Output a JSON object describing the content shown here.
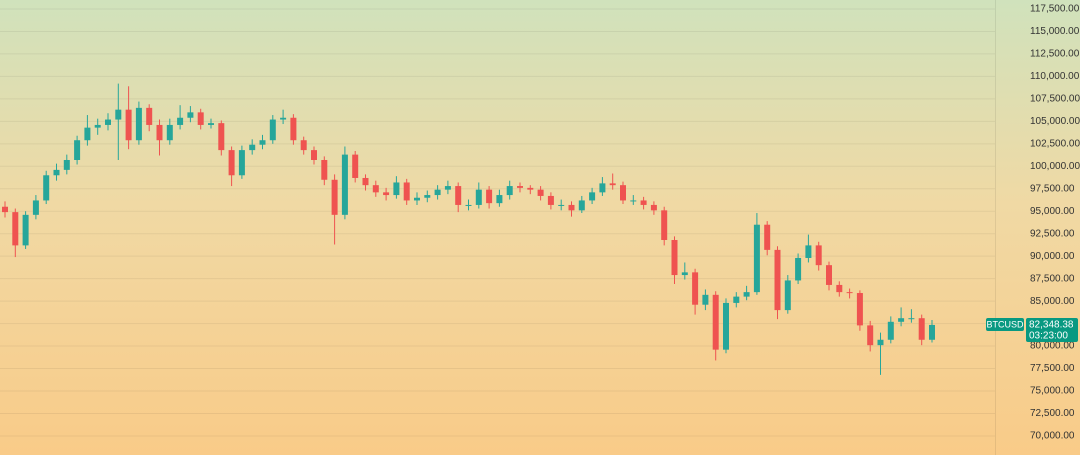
{
  "chart_data": {
    "type": "candlestick",
    "symbol": "BTCUSD",
    "last_price": {
      "value": 82348.38,
      "label": "82,348.38"
    },
    "countdown": "03:23:00",
    "up_color": "#26a69a",
    "down_color": "#ef5350",
    "badge_color": "#089981",
    "grid": true,
    "ylim": [
      67880,
      118500
    ],
    "yticks": [
      {
        "value": 70000,
        "label": "70,000.00"
      },
      {
        "value": 72500,
        "label": "72,500.00"
      },
      {
        "value": 75000,
        "label": "75,000.00"
      },
      {
        "value": 77500,
        "label": "77,500.00"
      },
      {
        "value": 80000,
        "label": "80,000.00"
      },
      {
        "value": 82500,
        "label": "82,500.00"
      },
      {
        "value": 85000,
        "label": "85,000.00"
      },
      {
        "value": 87500,
        "label": "87,500.00"
      },
      {
        "value": 90000,
        "label": "90,000.00"
      },
      {
        "value": 92500,
        "label": "92,500.00"
      },
      {
        "value": 95000,
        "label": "95,000.00"
      },
      {
        "value": 97500,
        "label": "97,500.00"
      },
      {
        "value": 100000,
        "label": "100,000.00"
      },
      {
        "value": 102500,
        "label": "102,500.00"
      },
      {
        "value": 105000,
        "label": "105,000.00"
      },
      {
        "value": 107500,
        "label": "107,500.00"
      },
      {
        "value": 110000,
        "label": "110,000.00"
      },
      {
        "value": 112500,
        "label": "112,500.00"
      },
      {
        "value": 115000,
        "label": "115,000.00"
      },
      {
        "value": 117500,
        "label": "117,500.00"
      }
    ],
    "open": [
      95500,
      94900,
      91200,
      94600,
      96200,
      99000,
      99600,
      100700,
      102900,
      104300,
      104600,
      105200,
      106300,
      102900,
      106500,
      104600,
      102900,
      104600,
      105400,
      106000,
      104600,
      104800,
      101800,
      99000,
      101800,
      102400,
      102900,
      105200,
      105400,
      102900,
      101800,
      100700,
      98500,
      94600,
      101300,
      98700,
      97900,
      97100,
      96800,
      98200,
      96200,
      96500,
      96800,
      97400,
      97800,
      95700,
      95700,
      97400,
      95900,
      96800,
      97800,
      97600,
      97400,
      96700,
      95700,
      95700,
      95100,
      96200,
      97100,
      98100,
      97900,
      96200,
      96200,
      95700,
      95100,
      91800,
      87900,
      88200,
      84600,
      85700,
      79600,
      84800,
      85500,
      86000,
      93500,
      90700,
      84000,
      87300,
      89800,
      91200,
      89000,
      86800,
      86000,
      85900,
      82300,
      80100,
      80700,
      82700,
      83100,
      83100,
      80700
    ],
    "high": [
      96100,
      95300,
      95000,
      96800,
      99500,
      100300,
      101300,
      103400,
      105700,
      105300,
      105900,
      109200,
      108900,
      107200,
      106900,
      105200,
      105300,
      106800,
      106700,
      106400,
      105300,
      105100,
      102200,
      102300,
      103000,
      103500,
      105700,
      106300,
      105800,
      103300,
      102200,
      101100,
      99100,
      102200,
      101700,
      99100,
      98400,
      97600,
      98900,
      98600,
      97100,
      97300,
      97900,
      98400,
      98200,
      96300,
      98200,
      97800,
      97400,
      98400,
      98200,
      97900,
      97800,
      97100,
      96300,
      96100,
      96700,
      97600,
      98800,
      99200,
      98300,
      96800,
      96600,
      96100,
      95500,
      92200,
      89300,
      88600,
      86300,
      86100,
      85300,
      86000,
      86700,
      94800,
      93900,
      91100,
      87900,
      90300,
      92400,
      91600,
      89400,
      87200,
      86400,
      86200,
      82800,
      81500,
      83300,
      84300,
      84100,
      83500,
      82900
    ],
    "low": [
      94300,
      89900,
      90800,
      94100,
      95800,
      98400,
      99100,
      100200,
      102300,
      103500,
      104000,
      100700,
      101900,
      102400,
      103900,
      101200,
      102400,
      104100,
      104900,
      104100,
      104200,
      101200,
      97800,
      98600,
      101300,
      101900,
      102500,
      104700,
      102400,
      101300,
      100200,
      97900,
      91300,
      94100,
      98200,
      97300,
      96600,
      96200,
      96400,
      95700,
      95700,
      96000,
      96300,
      96900,
      94900,
      95100,
      95300,
      95300,
      95500,
      96300,
      97100,
      96900,
      96200,
      95200,
      95100,
      94400,
      94800,
      95800,
      96700,
      97400,
      95800,
      95700,
      95200,
      94600,
      91200,
      86900,
      87400,
      83500,
      84000,
      78400,
      79200,
      84300,
      85100,
      85700,
      90100,
      83000,
      83600,
      86900,
      89300,
      88400,
      86200,
      85500,
      85300,
      81700,
      79400,
      76800,
      80300,
      82200,
      82600,
      80100,
      80400
    ],
    "close": [
      94900,
      91200,
      94600,
      96200,
      99000,
      99600,
      100700,
      102900,
      104300,
      104600,
      105200,
      106300,
      102900,
      106500,
      104600,
      102900,
      104600,
      105400,
      106000,
      104600,
      104800,
      101800,
      99000,
      101800,
      102400,
      102900,
      105200,
      105400,
      102900,
      101800,
      100700,
      98500,
      94600,
      101300,
      98700,
      97900,
      97100,
      96800,
      98200,
      96200,
      96500,
      96800,
      97400,
      97800,
      95700,
      95700,
      97400,
      95900,
      96800,
      97800,
      97600,
      97400,
      96700,
      95700,
      95700,
      95100,
      96200,
      97100,
      98100,
      97900,
      96200,
      96200,
      95700,
      95100,
      91800,
      87900,
      88200,
      84600,
      85700,
      79600,
      84800,
      85500,
      86000,
      93500,
      90700,
      84000,
      87300,
      89800,
      91200,
      89000,
      86800,
      86000,
      85900,
      82300,
      80100,
      80700,
      82700,
      83100,
      83100,
      80700,
      82348.38
    ]
  }
}
